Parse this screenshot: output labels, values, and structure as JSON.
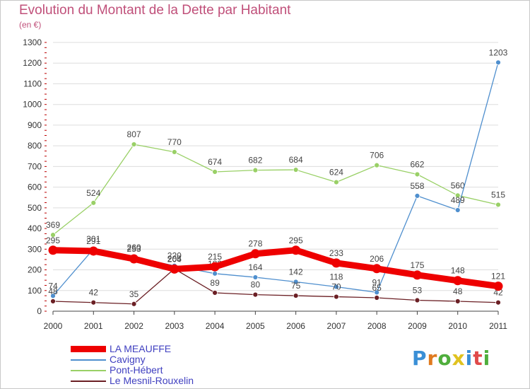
{
  "header": {
    "title": "Evolution du Montant de la Dette par Habitant",
    "subtitle": "(en €)"
  },
  "logo": {
    "text": "Proxiti",
    "colors": [
      "#3a8fd6",
      "#e07a1f",
      "#4fae3c",
      "#e0c21f",
      "#3a8fd6",
      "#e04a4a",
      "#4fae3c"
    ]
  },
  "colors": {
    "grid": "#dddddd",
    "axis": "#444444",
    "tick_text": "#333333",
    "value_text": "#444444",
    "title": "#c0507a",
    "legend_text": "#4040c0"
  },
  "chart_data": {
    "type": "line",
    "title": "Evolution du Montant de la Dette par Habitant",
    "subtitle": "(en €)",
    "xlabel": "",
    "ylabel": "",
    "x": [
      "2000",
      "2001",
      "2002",
      "2003",
      "2004",
      "2005",
      "2006",
      "2007",
      "2008",
      "2009",
      "2010",
      "2011"
    ],
    "ylim": [
      0,
      1300
    ],
    "yticks": [
      0,
      100,
      200,
      300,
      400,
      500,
      600,
      700,
      800,
      900,
      1000,
      1100,
      1200,
      1300
    ],
    "grid": true,
    "legend_position": "bottom-left",
    "series": [
      {
        "name": "LA MEAUFFE",
        "color": "#ee0000",
        "width": 9,
        "values": [
          295,
          291,
          253,
          204,
          215,
          278,
          295,
          233,
          206,
          175,
          148,
          121
        ]
      },
      {
        "name": "Cavigny",
        "color": "#4f8fce",
        "width": 1.3,
        "values": [
          74,
          301,
          260,
          220,
          182,
          164,
          142,
          118,
          91,
          558,
          489,
          1203
        ]
      },
      {
        "name": "Pont-Hébert",
        "color": "#99d066",
        "width": 1.3,
        "values": [
          369,
          524,
          807,
          770,
          674,
          682,
          684,
          624,
          706,
          662,
          560,
          515
        ]
      },
      {
        "name": "Le Mesnil-Rouxelin",
        "color": "#6b1f24",
        "width": 1.3,
        "values": [
          48,
          42,
          35,
          205,
          89,
          80,
          75,
          70,
          65,
          53,
          48,
          42
        ]
      }
    ]
  }
}
